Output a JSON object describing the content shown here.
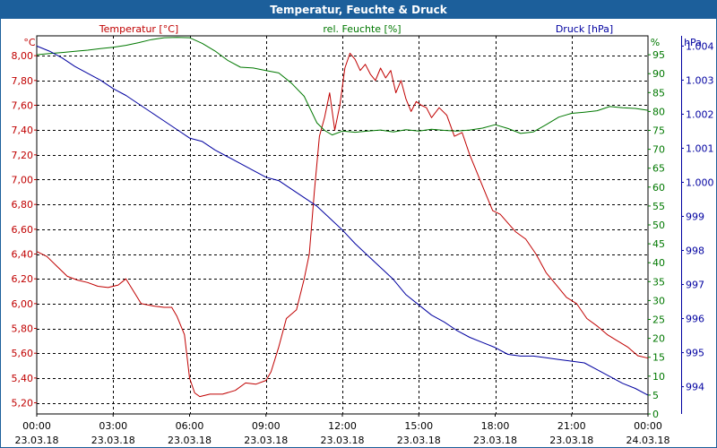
{
  "window": {
    "title": "Temperatur, Feuchte & Druck"
  },
  "colors": {
    "temperature": "#c00000",
    "humidity": "#007800",
    "pressure": "#0000a0",
    "grid": "#000000",
    "titlebar": "#1c5f9b"
  },
  "chart_data": {
    "type": "line",
    "title": "Temperatur, Feuchte & Druck",
    "x_hours": [
      0,
      24
    ],
    "x_ticks": [
      {
        "h": 0,
        "time": "00:00",
        "date": "23.03.18"
      },
      {
        "h": 3,
        "time": "03:00",
        "date": "23.03.18"
      },
      {
        "h": 6,
        "time": "06:00",
        "date": "23.03.18"
      },
      {
        "h": 9,
        "time": "09:00",
        "date": "23.03.18"
      },
      {
        "h": 12,
        "time": "12:00",
        "date": "23.03.18"
      },
      {
        "h": 15,
        "time": "15:00",
        "date": "23.03.18"
      },
      {
        "h": 18,
        "time": "18:00",
        "date": "23.03.18"
      },
      {
        "h": 21,
        "time": "21:00",
        "date": "23.03.18"
      },
      {
        "h": 24,
        "time": "00:00",
        "date": "24.03.18"
      }
    ],
    "axes": {
      "temperature": {
        "label": "Temperatur [°C]",
        "unit": "°C",
        "min": 5.11,
        "max": 8.16,
        "ticks": [
          "5,20",
          "5,40",
          "5,60",
          "5,80",
          "6,00",
          "6,20",
          "6,40",
          "6,60",
          "6,80",
          "7,00",
          "7,20",
          "7,40",
          "7,60",
          "7,80",
          "8,00"
        ]
      },
      "humidity": {
        "label": "rel. Feuchte [%]",
        "unit": "%",
        "min": 0,
        "max": 100,
        "ticks": [
          "0",
          "5",
          "10",
          "15",
          "20",
          "25",
          "30",
          "35",
          "40",
          "45",
          "50",
          "55",
          "60",
          "65",
          "70",
          "75",
          "80",
          "85",
          "90",
          "95"
        ]
      },
      "pressure": {
        "label": "Druck [hPa]",
        "unit": "hPa",
        "min": 993.2,
        "max": 1004.3,
        "ticks": [
          "994",
          "995",
          "996",
          "997",
          "998",
          "999",
          "1.000",
          "1.001",
          "1.002",
          "1.003",
          "1.004"
        ]
      }
    },
    "series": [
      {
        "name": "Temperatur [°C]",
        "axis": "temperature",
        "color": "#c00000",
        "points": [
          [
            0,
            6.42
          ],
          [
            0.4,
            6.38
          ],
          [
            0.8,
            6.3
          ],
          [
            1.2,
            6.22
          ],
          [
            1.6,
            6.19
          ],
          [
            2.0,
            6.17
          ],
          [
            2.4,
            6.14
          ],
          [
            2.8,
            6.13
          ],
          [
            3.2,
            6.15
          ],
          [
            3.5,
            6.2
          ],
          [
            3.8,
            6.1
          ],
          [
            4.1,
            6.0
          ],
          [
            4.6,
            5.98
          ],
          [
            5.0,
            5.97
          ],
          [
            5.3,
            5.97
          ],
          [
            5.5,
            5.9
          ],
          [
            5.8,
            5.75
          ],
          [
            6.0,
            5.4
          ],
          [
            6.2,
            5.28
          ],
          [
            6.4,
            5.25
          ],
          [
            6.8,
            5.27
          ],
          [
            7.3,
            5.27
          ],
          [
            7.8,
            5.3
          ],
          [
            8.2,
            5.36
          ],
          [
            8.6,
            5.35
          ],
          [
            9.0,
            5.38
          ],
          [
            9.2,
            5.45
          ],
          [
            9.5,
            5.65
          ],
          [
            9.8,
            5.88
          ],
          [
            10.2,
            5.95
          ],
          [
            10.5,
            6.2
          ],
          [
            10.7,
            6.4
          ],
          [
            10.9,
            6.9
          ],
          [
            11.1,
            7.35
          ],
          [
            11.3,
            7.5
          ],
          [
            11.5,
            7.7
          ],
          [
            11.7,
            7.4
          ],
          [
            11.9,
            7.6
          ],
          [
            12.1,
            7.9
          ],
          [
            12.3,
            8.02
          ],
          [
            12.5,
            7.97
          ],
          [
            12.7,
            7.88
          ],
          [
            12.9,
            7.93
          ],
          [
            13.1,
            7.85
          ],
          [
            13.3,
            7.8
          ],
          [
            13.5,
            7.9
          ],
          [
            13.7,
            7.82
          ],
          [
            13.9,
            7.88
          ],
          [
            14.1,
            7.7
          ],
          [
            14.3,
            7.8
          ],
          [
            14.5,
            7.65
          ],
          [
            14.7,
            7.55
          ],
          [
            14.9,
            7.63
          ],
          [
            15.1,
            7.6
          ],
          [
            15.3,
            7.58
          ],
          [
            15.5,
            7.5
          ],
          [
            15.8,
            7.58
          ],
          [
            16.1,
            7.52
          ],
          [
            16.4,
            7.35
          ],
          [
            16.7,
            7.38
          ],
          [
            17.0,
            7.2
          ],
          [
            17.3,
            7.05
          ],
          [
            17.6,
            6.9
          ],
          [
            17.9,
            6.75
          ],
          [
            18.2,
            6.72
          ],
          [
            18.5,
            6.65
          ],
          [
            18.8,
            6.58
          ],
          [
            19.2,
            6.52
          ],
          [
            19.6,
            6.4
          ],
          [
            20.0,
            6.25
          ],
          [
            20.4,
            6.15
          ],
          [
            20.8,
            6.05
          ],
          [
            21.2,
            6.0
          ],
          [
            21.6,
            5.88
          ],
          [
            22.0,
            5.82
          ],
          [
            22.4,
            5.75
          ],
          [
            22.8,
            5.7
          ],
          [
            23.2,
            5.65
          ],
          [
            23.6,
            5.58
          ],
          [
            24,
            5.56
          ]
        ]
      },
      {
        "name": "rel. Feuchte [%]",
        "axis": "humidity",
        "color": "#007800",
        "points": [
          [
            0,
            95
          ],
          [
            0.5,
            95.3
          ],
          [
            1,
            95.6
          ],
          [
            1.5,
            95.9
          ],
          [
            2,
            96.2
          ],
          [
            2.5,
            96.6
          ],
          [
            3,
            97
          ],
          [
            3.5,
            97.5
          ],
          [
            4,
            98.2
          ],
          [
            4.5,
            99
          ],
          [
            5,
            99.5
          ],
          [
            5.5,
            99.6
          ],
          [
            6,
            99.5
          ],
          [
            6.5,
            98
          ],
          [
            7,
            96
          ],
          [
            7.5,
            93.5
          ],
          [
            8,
            91.7
          ],
          [
            8.5,
            91.5
          ],
          [
            9,
            90.8
          ],
          [
            9.5,
            90.2
          ],
          [
            10,
            87.5
          ],
          [
            10.5,
            84
          ],
          [
            11,
            77
          ],
          [
            11.3,
            75
          ],
          [
            11.6,
            73.8
          ],
          [
            12,
            74.8
          ],
          [
            12.5,
            74.5
          ],
          [
            13,
            74.8
          ],
          [
            13.5,
            75.1
          ],
          [
            14,
            74.6
          ],
          [
            14.5,
            75.2
          ],
          [
            15,
            74.8
          ],
          [
            15.5,
            75.3
          ],
          [
            16,
            75
          ],
          [
            16.5,
            74.8
          ],
          [
            17,
            75.1
          ],
          [
            17.5,
            75.6
          ],
          [
            18,
            76.5
          ],
          [
            18.5,
            75.5
          ],
          [
            19,
            74.2
          ],
          [
            19.5,
            74.6
          ],
          [
            20,
            76.5
          ],
          [
            20.5,
            78.5
          ],
          [
            21,
            79.5
          ],
          [
            21.5,
            79.8
          ],
          [
            22,
            80.2
          ],
          [
            22.5,
            81.3
          ],
          [
            23,
            81
          ],
          [
            23.5,
            80.8
          ],
          [
            24,
            80.3
          ]
        ]
      },
      {
        "name": "Druck [hPa]",
        "axis": "pressure",
        "color": "#0000a0",
        "points": [
          [
            0,
            1004.0
          ],
          [
            0.5,
            1003.85
          ],
          [
            1,
            1003.65
          ],
          [
            1.5,
            1003.4
          ],
          [
            2,
            1003.2
          ],
          [
            2.5,
            1003.0
          ],
          [
            3,
            1002.75
          ],
          [
            3.5,
            1002.55
          ],
          [
            4,
            1002.3
          ],
          [
            4.5,
            1002.05
          ],
          [
            5,
            1001.8
          ],
          [
            5.5,
            1001.55
          ],
          [
            6,
            1001.3
          ],
          [
            6.5,
            1001.2
          ],
          [
            7,
            1000.95
          ],
          [
            7.5,
            1000.75
          ],
          [
            8,
            1000.55
          ],
          [
            8.5,
            1000.35
          ],
          [
            9,
            1000.15
          ],
          [
            9.5,
            1000.05
          ],
          [
            10,
            999.8
          ],
          [
            10.5,
            999.55
          ],
          [
            11,
            999.3
          ],
          [
            11.5,
            998.95
          ],
          [
            12,
            998.6
          ],
          [
            12.5,
            998.2
          ],
          [
            13,
            997.85
          ],
          [
            13.5,
            997.5
          ],
          [
            14,
            997.15
          ],
          [
            14.5,
            996.7
          ],
          [
            15,
            996.4
          ],
          [
            15.5,
            996.1
          ],
          [
            16,
            995.9
          ],
          [
            16.5,
            995.65
          ],
          [
            17,
            995.45
          ],
          [
            17.5,
            995.3
          ],
          [
            18,
            995.15
          ],
          [
            18.5,
            994.95
          ],
          [
            19,
            994.9
          ],
          [
            19.5,
            994.9
          ],
          [
            20,
            994.85
          ],
          [
            20.5,
            994.8
          ],
          [
            21,
            994.75
          ],
          [
            21.5,
            994.7
          ],
          [
            22,
            994.5
          ],
          [
            22.5,
            994.3
          ],
          [
            23,
            994.1
          ],
          [
            23.5,
            993.95
          ],
          [
            24,
            993.75
          ]
        ]
      }
    ]
  }
}
